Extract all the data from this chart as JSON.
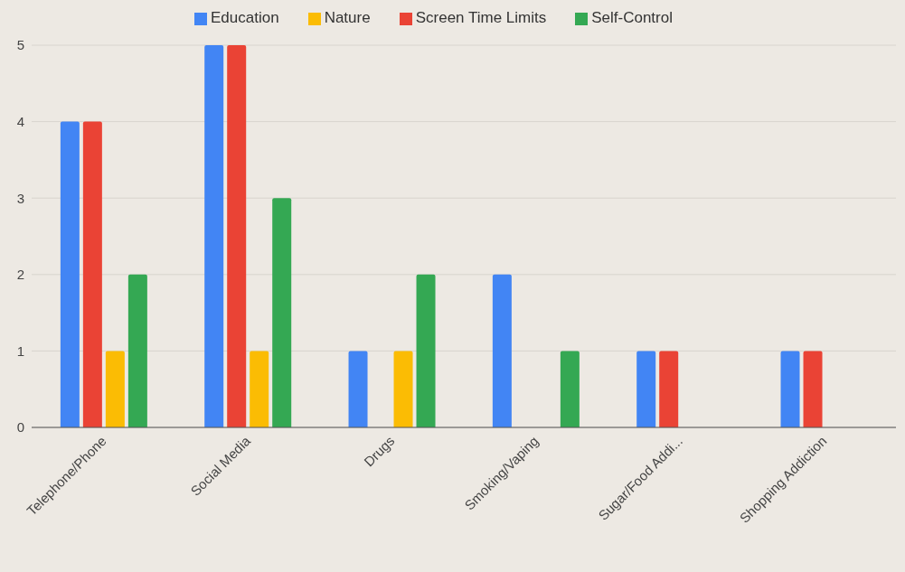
{
  "chart_data": {
    "type": "bar",
    "categories": [
      "Telephone/Phone",
      "Social Media",
      "Drugs",
      "Smoking/Vaping",
      "Sugar/Food Addi...",
      "Shopping Addiction"
    ],
    "series": [
      {
        "name": "Education",
        "color": "#4285f4",
        "values": [
          4,
          5,
          1,
          2,
          1,
          1
        ]
      },
      {
        "name": "Screen Time Limits",
        "color": "#ea4335",
        "values": [
          4,
          5,
          0,
          0,
          1,
          1
        ]
      },
      {
        "name": "Nature",
        "color": "#fbbc04",
        "values": [
          1,
          1,
          1,
          0,
          0,
          0
        ]
      },
      {
        "name": "Self-Control",
        "color": "#34a853",
        "values": [
          2,
          3,
          2,
          1,
          0,
          0
        ]
      }
    ],
    "ylim": [
      0,
      5
    ],
    "yticks": [
      0,
      1,
      2,
      3,
      4,
      5
    ],
    "grid": "y",
    "legend": "top"
  }
}
